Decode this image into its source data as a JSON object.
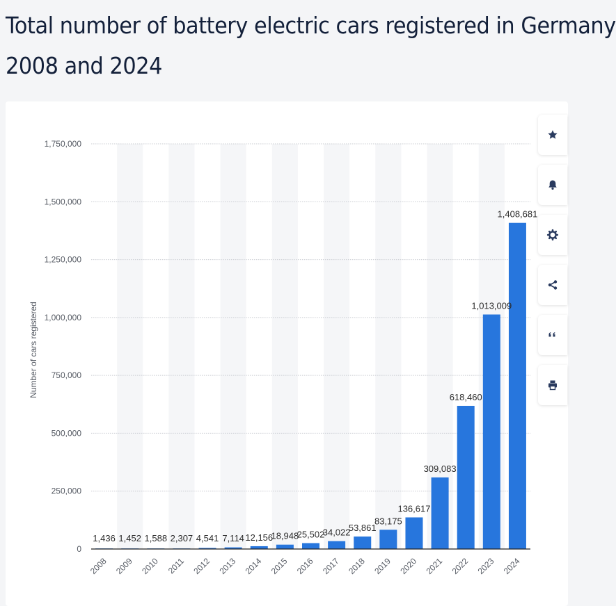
{
  "title": "Total number of battery electric cars registered in Germany 2008 and 2024",
  "title_lines": [
    "Total number of battery electric cars registered in Germany",
    "2008 and 2024"
  ],
  "toolbar": [
    {
      "name": "favorite-button",
      "icon": "star-icon"
    },
    {
      "name": "notification-button",
      "icon": "bell-icon"
    },
    {
      "name": "settings-button",
      "icon": "gear-icon"
    },
    {
      "name": "share-button",
      "icon": "share-icon"
    },
    {
      "name": "cite-button",
      "icon": "quote-icon"
    },
    {
      "name": "print-button",
      "icon": "print-icon"
    }
  ],
  "colors": {
    "bar": "#2776dd",
    "band": "#f5f6f8",
    "grid": "#c9ccd1",
    "text": "#333333",
    "title": "#13203a"
  },
  "chart_data": {
    "type": "bar",
    "title": "Total number of battery electric cars registered in Germany 2008 and 2024",
    "xlabel": "",
    "ylabel": "Number of cars registered",
    "ylim": [
      0,
      1750000
    ],
    "yticks": [
      0,
      250000,
      500000,
      750000,
      1000000,
      1250000,
      1500000,
      1750000
    ],
    "ytick_labels": [
      "0",
      "250,000",
      "500,000",
      "750,000",
      "1,000,000",
      "1,250,000",
      "1,500,000",
      "1,750,000"
    ],
    "grid": true,
    "categories": [
      "2008",
      "2009",
      "2010",
      "2011",
      "2012",
      "2013",
      "2014",
      "2015",
      "2016",
      "2017",
      "2018",
      "2019",
      "2020",
      "2021",
      "2022",
      "2023",
      "2024"
    ],
    "values": [
      1436,
      1452,
      1588,
      2307,
      4541,
      7114,
      12156,
      18948,
      25502,
      34022,
      53861,
      83175,
      136617,
      309083,
      618460,
      1013009,
      1408681
    ],
    "value_labels": [
      "1,436",
      "1,452",
      "1,588",
      "2,307",
      "4,541",
      "7,114",
      "12,156",
      "18,948",
      "25,502",
      "34,022",
      "53,861",
      "83,175",
      "136,617",
      "309,083",
      "618,460",
      "1,013,009",
      "1,408,681"
    ]
  }
}
